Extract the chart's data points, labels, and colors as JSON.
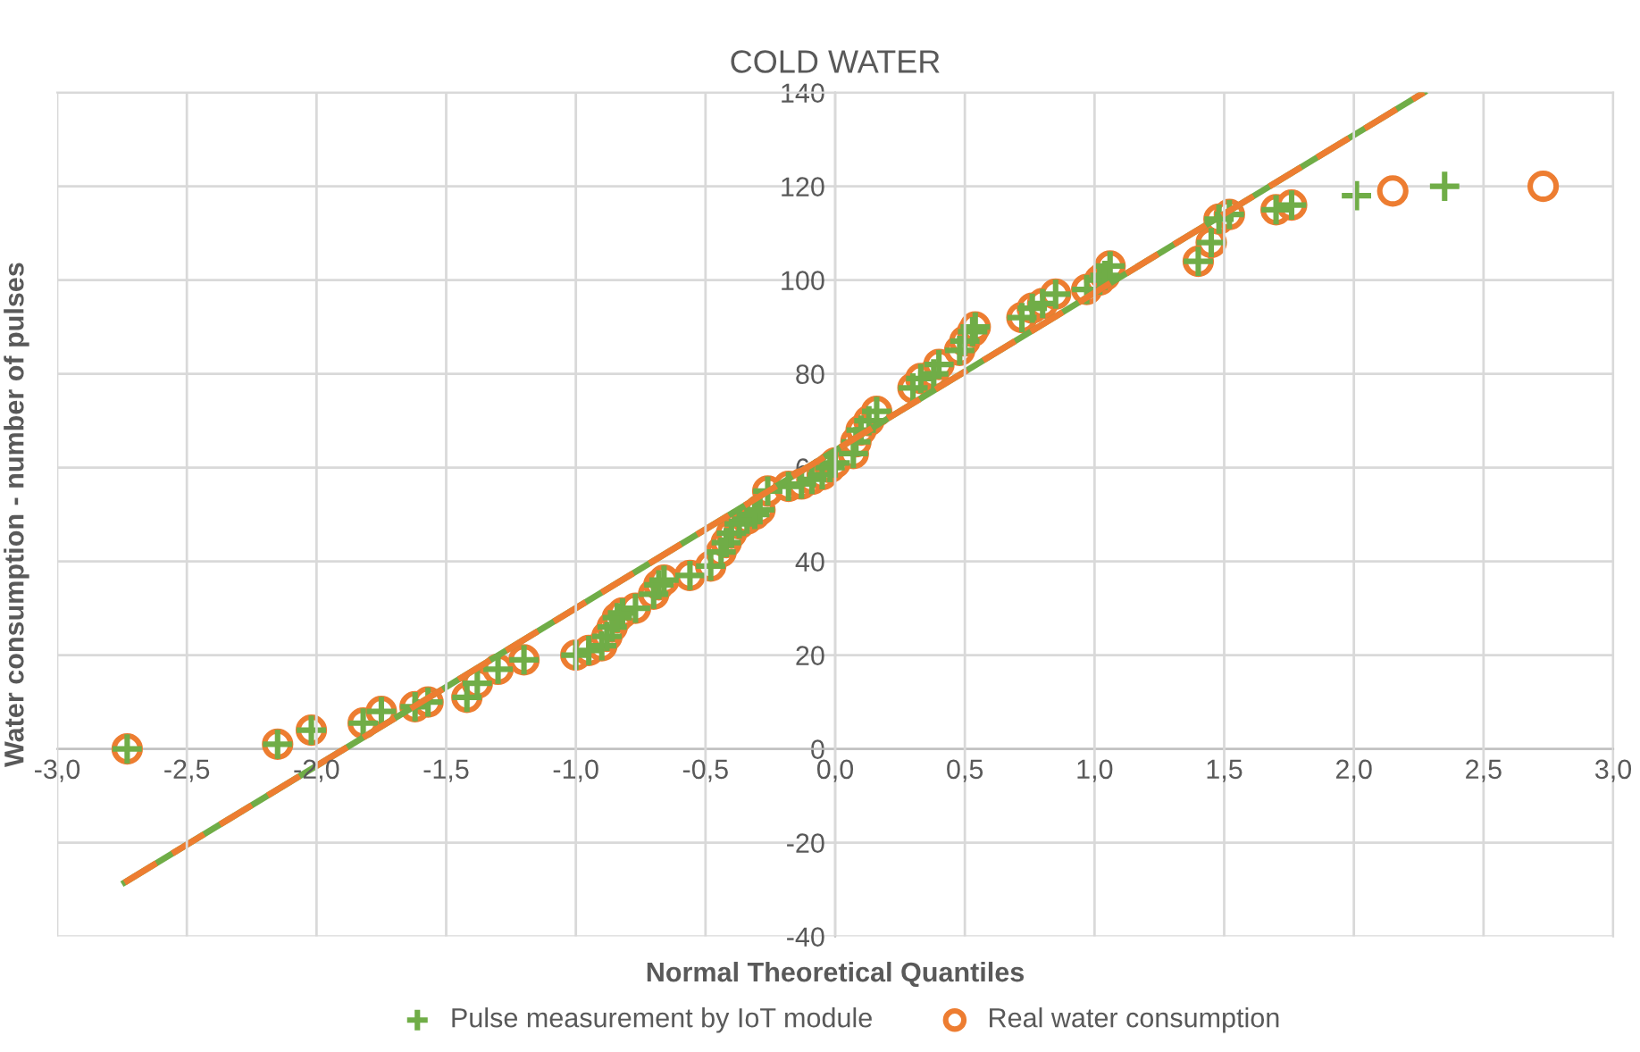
{
  "chart_data": {
    "type": "scatter",
    "title": "COLD WATER",
    "xlabel": "Normal Theoretical Quantiles",
    "ylabel": "Water consumption - number of pulses",
    "xlim": [
      -3,
      3
    ],
    "ylim": [
      -40,
      140
    ],
    "xticks": [
      {
        "value": -3,
        "label": "-3,0"
      },
      {
        "value": -2.5,
        "label": "-2,5"
      },
      {
        "value": -2,
        "label": "-2,0"
      },
      {
        "value": -1.5,
        "label": "-1,5"
      },
      {
        "value": -1,
        "label": "-1,0"
      },
      {
        "value": -0.5,
        "label": "-0,5"
      },
      {
        "value": 0,
        "label": "0,0"
      },
      {
        "value": 0.5,
        "label": "0,5"
      },
      {
        "value": 1,
        "label": "1,0"
      },
      {
        "value": 1.5,
        "label": "1,5"
      },
      {
        "value": 2,
        "label": "2,0"
      },
      {
        "value": 2.5,
        "label": "2,5"
      },
      {
        "value": 3,
        "label": "3,0"
      }
    ],
    "yticks": [
      -40,
      -20,
      0,
      20,
      40,
      60,
      80,
      100,
      120,
      140
    ],
    "grid": true,
    "legend": "bottom",
    "series": [
      {
        "name": "Pulse measurement by IoT module",
        "color": "#70ad47",
        "marker": "cross",
        "x": [
          -2.73,
          -2.15,
          -2.02,
          -1.82,
          -1.75,
          -1.62,
          -1.57,
          -1.42,
          -1.38,
          -1.3,
          -1.2,
          -1.0,
          -0.95,
          -0.9,
          -0.88,
          -0.86,
          -0.84,
          -0.82,
          -0.77,
          -0.7,
          -0.68,
          -0.66,
          -0.56,
          -0.48,
          -0.44,
          -0.42,
          -0.4,
          -0.37,
          -0.34,
          -0.31,
          -0.29,
          -0.26,
          -0.18,
          -0.13,
          -0.09,
          -0.05,
          -0.02,
          0.0,
          0.07,
          0.08,
          0.1,
          0.13,
          0.16,
          0.3,
          0.33,
          0.38,
          0.4,
          0.48,
          0.5,
          0.53,
          0.54,
          0.72,
          0.76,
          0.8,
          0.85,
          0.97,
          1.02,
          1.04,
          1.06,
          1.4,
          1.45,
          1.48,
          1.52,
          1.7,
          1.76,
          2.01,
          2.35
        ],
        "values": [
          0,
          1,
          4,
          5.5,
          8,
          9,
          10,
          11,
          14,
          17,
          19,
          20,
          21,
          22,
          24,
          26,
          28,
          29,
          30,
          33,
          35,
          36,
          37,
          39,
          42,
          44,
          46,
          48,
          49,
          50,
          51,
          55,
          56,
          56.5,
          57.5,
          58.5,
          60,
          61,
          63,
          65.5,
          68,
          70,
          72,
          77,
          79,
          80,
          82,
          85,
          87,
          89,
          90,
          92,
          94,
          95,
          97,
          98,
          100,
          101,
          103,
          104,
          108,
          113,
          114,
          115,
          116,
          118,
          120
        ]
      },
      {
        "name": "Real water consumption",
        "color": "#ed7d31",
        "marker": "circle",
        "x": [
          -2.73,
          -2.15,
          -2.02,
          -1.82,
          -1.75,
          -1.62,
          -1.57,
          -1.42,
          -1.38,
          -1.3,
          -1.2,
          -1.0,
          -0.95,
          -0.9,
          -0.88,
          -0.86,
          -0.84,
          -0.82,
          -0.77,
          -0.7,
          -0.68,
          -0.66,
          -0.56,
          -0.48,
          -0.44,
          -0.42,
          -0.4,
          -0.37,
          -0.34,
          -0.31,
          -0.29,
          -0.26,
          -0.18,
          -0.13,
          -0.09,
          -0.05,
          -0.02,
          0.0,
          0.07,
          0.08,
          0.1,
          0.13,
          0.16,
          0.3,
          0.33,
          0.38,
          0.4,
          0.48,
          0.5,
          0.53,
          0.54,
          0.72,
          0.76,
          0.8,
          0.85,
          0.97,
          1.02,
          1.04,
          1.06,
          1.4,
          1.45,
          1.48,
          1.52,
          1.7,
          1.76,
          2.15,
          2.73
        ],
        "values": [
          0,
          1,
          4,
          5.5,
          8,
          9,
          10,
          11,
          14,
          17,
          19,
          20,
          21,
          22,
          24,
          26,
          28,
          29,
          30,
          33,
          35,
          36,
          37,
          39,
          42,
          44,
          46,
          48,
          49,
          50,
          51,
          55,
          56,
          56.5,
          57.5,
          58.5,
          60,
          61,
          63,
          65.5,
          68,
          70,
          72,
          77,
          79,
          80,
          82,
          85,
          87,
          89,
          90,
          92,
          94,
          95,
          97,
          98,
          100,
          101,
          103,
          104,
          108,
          113,
          114,
          115,
          116,
          119,
          120
        ]
      },
      {
        "type": "line",
        "color": "#70ad47",
        "line_style": "solid",
        "x": [
          -2.74,
          2.27
        ],
        "values": [
          -28.5,
          140
        ]
      },
      {
        "type": "line",
        "color": "#ed7d31",
        "line_style": "dashed",
        "x": [
          -2.74,
          2.27
        ],
        "values": [
          -28.5,
          140
        ]
      }
    ]
  }
}
